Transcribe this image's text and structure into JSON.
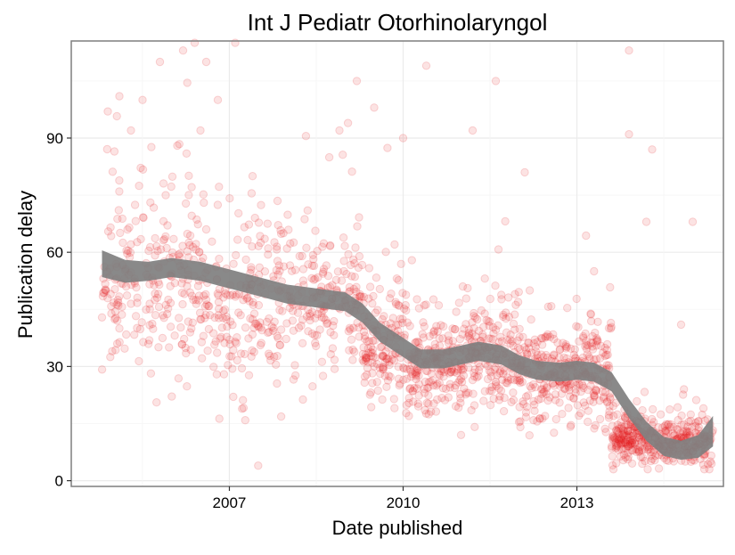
{
  "colors": {
    "points": "#e41a1c",
    "smoother_band": "#7f7f7f",
    "panel_border": "#7f7f7f",
    "grid_major": "#ebebeb",
    "grid_minor": "#f5f5f5",
    "axis_text": "#000000"
  },
  "chart_data": {
    "type": "scatter",
    "title": "Int J Pediatr Otorhinolaryngol",
    "xlabel": "Date published",
    "ylabel": "Publication delay",
    "x_unit": "year",
    "xlim": [
      2004.27,
      2015.53
    ],
    "ylim": [
      -1.5,
      115.5
    ],
    "x_ticks": [
      2007,
      2010,
      2013
    ],
    "x_tick_labels": [
      "2007",
      "2010",
      "2013"
    ],
    "y_ticks": [
      0,
      30,
      60,
      90
    ],
    "y_tick_labels": [
      "0",
      "30",
      "60",
      "90"
    ],
    "grid": true,
    "legend": "none",
    "point_opacity": 0.12,
    "smoother": {
      "x": [
        2004.8,
        2005.2,
        2005.6,
        2006.0,
        2006.5,
        2007.0,
        2007.5,
        2008.0,
        2008.5,
        2009.0,
        2009.3,
        2009.6,
        2010.0,
        2010.3,
        2010.7,
        2011.0,
        2011.3,
        2011.7,
        2012.0,
        2012.3,
        2012.7,
        2013.0,
        2013.3,
        2013.6,
        2013.9,
        2014.2,
        2014.5,
        2014.8,
        2015.1,
        2015.35
      ],
      "y": [
        57,
        55,
        55,
        56,
        55,
        53,
        51,
        49,
        48,
        47,
        44,
        39,
        35,
        32,
        32,
        33,
        34,
        33,
        30.5,
        29,
        28.5,
        29,
        28.5,
        26,
        19,
        13,
        9,
        8,
        9,
        13
      ],
      "band_width": [
        3.5,
        3,
        2.5,
        2.5,
        2.5,
        2.5,
        2.5,
        2.5,
        2.5,
        2.5,
        2.5,
        2.5,
        2.5,
        2.5,
        2.5,
        2.5,
        2.5,
        2.5,
        2.5,
        2.5,
        2.5,
        2.5,
        2.5,
        2.5,
        2.5,
        2.5,
        2.5,
        2.5,
        3,
        4
      ]
    },
    "density": [
      {
        "x0": 2004.8,
        "x1": 2005.5,
        "n": 95,
        "center": 52,
        "spread": 14
      },
      {
        "x0": 2005.5,
        "x1": 2006.5,
        "n": 140,
        "center": 50,
        "spread": 14
      },
      {
        "x0": 2006.5,
        "x1": 2007.5,
        "n": 140,
        "center": 45,
        "spread": 14
      },
      {
        "x0": 2007.5,
        "x1": 2008.5,
        "n": 140,
        "center": 47,
        "spread": 12
      },
      {
        "x0": 2008.5,
        "x1": 2009.3,
        "n": 120,
        "center": 47,
        "spread": 11
      },
      {
        "x0": 2009.3,
        "x1": 2010.0,
        "n": 140,
        "center": 35,
        "spread": 10
      },
      {
        "x0": 2010.0,
        "x1": 2011.0,
        "n": 200,
        "center": 30,
        "spread": 8
      },
      {
        "x0": 2011.0,
        "x1": 2012.0,
        "n": 200,
        "center": 32,
        "spread": 8
      },
      {
        "x0": 2012.0,
        "x1": 2013.0,
        "n": 200,
        "center": 28,
        "spread": 8
      },
      {
        "x0": 2013.0,
        "x1": 2013.6,
        "n": 130,
        "center": 27,
        "spread": 9
      },
      {
        "x0": 2013.6,
        "x1": 2014.3,
        "n": 180,
        "center": 11,
        "spread": 4
      },
      {
        "x0": 2014.3,
        "x1": 2015.35,
        "n": 200,
        "center": 10,
        "spread": 4
      }
    ],
    "outliers": [
      [
        2004.9,
        97
      ],
      [
        2005.1,
        101
      ],
      [
        2005.3,
        92
      ],
      [
        2005.5,
        100
      ],
      [
        2005.8,
        110
      ],
      [
        2006.2,
        113
      ],
      [
        2006.4,
        115
      ],
      [
        2006.6,
        110
      ],
      [
        2006.8,
        100
      ],
      [
        2007.1,
        115
      ],
      [
        2006.1,
        88
      ],
      [
        2006.5,
        92
      ],
      [
        2008.9,
        92
      ],
      [
        2009.2,
        105
      ],
      [
        2009.5,
        98
      ],
      [
        2010.0,
        90
      ],
      [
        2010.4,
        109
      ],
      [
        2011.6,
        105
      ],
      [
        2011.2,
        92
      ],
      [
        2013.9,
        113
      ],
      [
        2013.9,
        91
      ],
      [
        2014.3,
        87
      ],
      [
        2014.2,
        68
      ],
      [
        2014.8,
        41
      ],
      [
        2015.0,
        68
      ],
      [
        2011.0,
        12
      ],
      [
        2010.1,
        17
      ],
      [
        2006.6,
        66
      ],
      [
        2005.9,
        75
      ],
      [
        2007.4,
        80
      ],
      [
        2012.1,
        81
      ]
    ]
  }
}
